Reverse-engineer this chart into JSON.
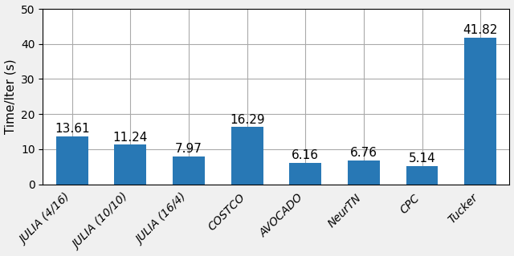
{
  "categories": [
    "JULIA (4/16)",
    "JULIA (10/10)",
    "JULIA (16/4)",
    "COSTCO",
    "AVOCADO",
    "NeurTN",
    "CPC",
    "Tucker"
  ],
  "values": [
    13.61,
    11.24,
    7.97,
    16.29,
    6.16,
    6.76,
    5.14,
    41.82
  ],
  "bar_color": "#2878b5",
  "ylabel": "Time/Iter (s)",
  "ylim": [
    0,
    50
  ],
  "yticks": [
    0,
    10,
    20,
    30,
    40,
    50
  ],
  "ylabel_fontsize": 11,
  "tick_fontsize": 10,
  "bar_width": 0.55,
  "value_label_fontsize": 11,
  "fig_facecolor": "#f0f0f0",
  "axes_facecolor": "#ffffff",
  "grid_color": "#aaaaaa"
}
